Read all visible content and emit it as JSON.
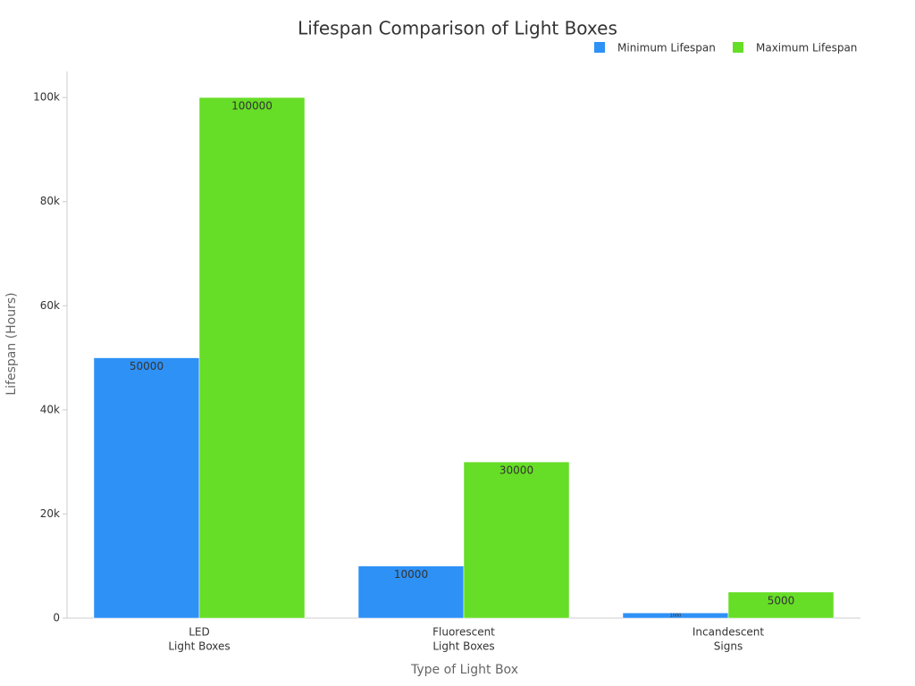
{
  "chart_data": {
    "type": "bar",
    "title": "Lifespan Comparison of Light Boxes",
    "x_label": "Type of Light Box",
    "y_label": "Lifespan (Hours)",
    "categories": [
      [
        "LED",
        "Light Boxes"
      ],
      [
        "Fluorescent",
        "Light Boxes"
      ],
      [
        "Incandescent",
        "Signs"
      ]
    ],
    "series": [
      {
        "name": "Minimum Lifespan",
        "color": "#2e91f5",
        "values": [
          50000,
          10000,
          1000
        ]
      },
      {
        "name": "Maximum Lifespan",
        "color": "#66dd26",
        "values": [
          100000,
          30000,
          5000
        ]
      }
    ],
    "ylim": [
      0,
      105000
    ],
    "yticks": [
      0,
      {
        "value": 20000,
        "label": "20k"
      },
      {
        "value": 40000,
        "label": "40k"
      },
      {
        "value": 60000,
        "label": "60k"
      },
      {
        "value": 80000,
        "label": "80k"
      },
      {
        "value": 100000,
        "label": "100k"
      }
    ],
    "grid": false,
    "legend": "top-right"
  }
}
